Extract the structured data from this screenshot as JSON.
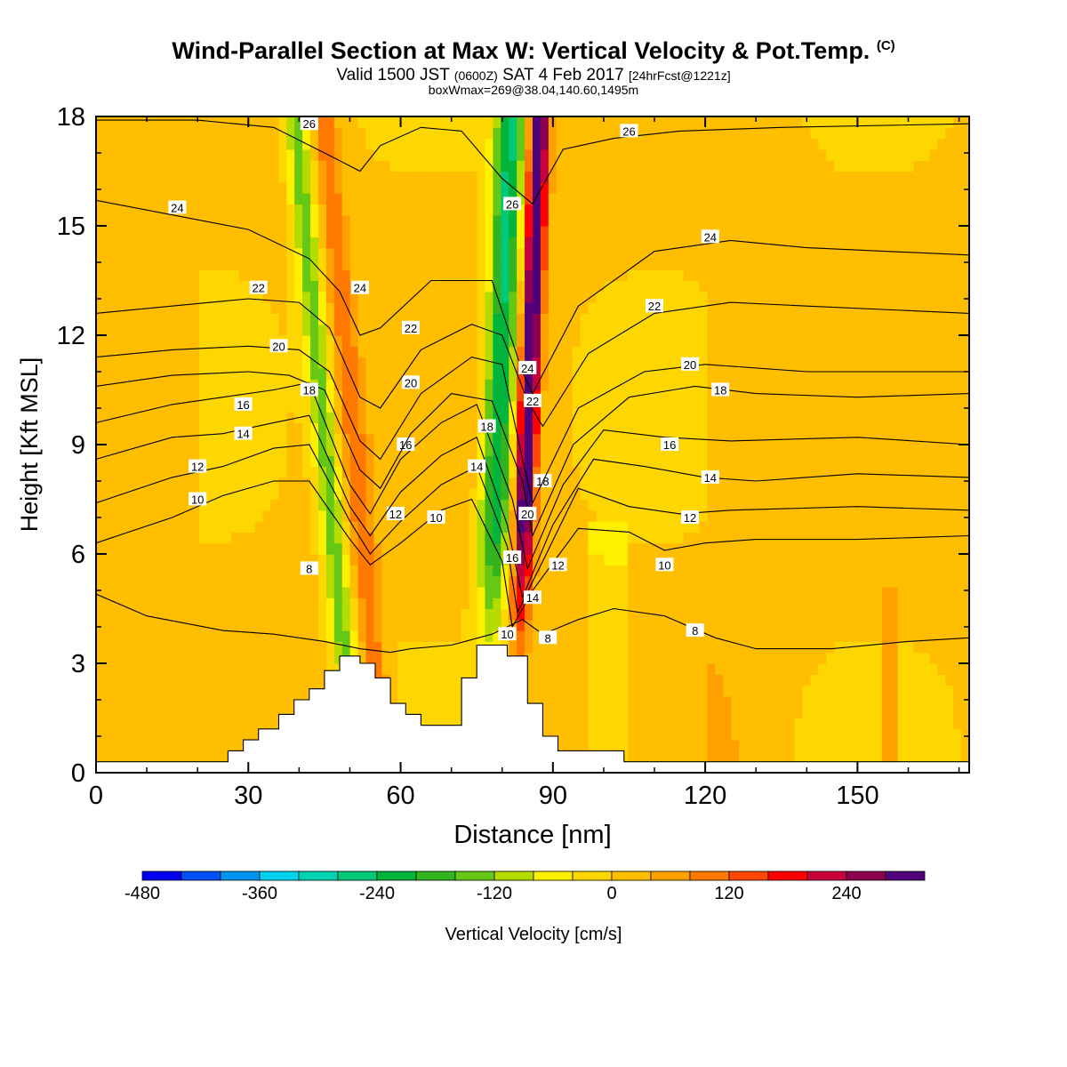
{
  "chart_data": {
    "type": "heatmap",
    "title": "Wind-Parallel Section at Max W: Vertical Velocity & Pot.Temp.",
    "title_mark": "(C)",
    "subtitle": {
      "valid": "Valid 1500 JST",
      "utc": "(0600Z)",
      "date": "SAT 4 Feb 2017",
      "forecast": "[24hrFcst@1221z]"
    },
    "subtitle2": "boxWmax=269@38.04,140.60,1495m",
    "xlabel": "Distance [nm]",
    "ylabel": "Height [Kft MSL]",
    "xlim": [
      0,
      172
    ],
    "ylim": [
      0,
      18
    ],
    "xticks": [
      0,
      30,
      60,
      90,
      120,
      150
    ],
    "yticks": [
      0,
      3,
      6,
      9,
      12,
      15,
      18
    ],
    "colorbar": {
      "label": "Vertical Velocity [cm/s]",
      "tick_labels": [
        "-480",
        "-360",
        "-240",
        "-120",
        "0",
        "120",
        "240"
      ],
      "tick_values": [
        -480,
        -360,
        -240,
        -120,
        0,
        120,
        240
      ],
      "levels": [
        -480,
        -440,
        -400,
        -360,
        -320,
        -280,
        -240,
        -200,
        -160,
        -120,
        -80,
        -40,
        0,
        40,
        80,
        120,
        160,
        200,
        240,
        280,
        320
      ],
      "colors": [
        "#0000ee",
        "#0050f5",
        "#0096f0",
        "#00d2f0",
        "#00d2b4",
        "#00c878",
        "#00b43c",
        "#32b41e",
        "#64c814",
        "#b4dc00",
        "#fff000",
        "#ffd700",
        "#ffbe00",
        "#ffa000",
        "#ff7800",
        "#ff4600",
        "#ff0000",
        "#c8003c",
        "#8c0050",
        "#500078"
      ]
    },
    "terrain": [
      [
        0,
        0.3
      ],
      [
        26,
        0.3
      ],
      [
        26,
        0.6
      ],
      [
        29,
        0.6
      ],
      [
        29,
        0.9
      ],
      [
        32,
        0.9
      ],
      [
        32,
        1.2
      ],
      [
        36,
        1.2
      ],
      [
        36,
        1.6
      ],
      [
        39,
        1.6
      ],
      [
        39,
        2.0
      ],
      [
        42,
        2.0
      ],
      [
        42,
        2.3
      ],
      [
        45,
        2.3
      ],
      [
        45,
        2.8
      ],
      [
        48,
        2.8
      ],
      [
        48,
        3.2
      ],
      [
        52,
        3.2
      ],
      [
        52,
        3.0
      ],
      [
        55,
        3.0
      ],
      [
        55,
        2.6
      ],
      [
        58,
        2.6
      ],
      [
        58,
        1.9
      ],
      [
        61,
        1.9
      ],
      [
        61,
        1.6
      ],
      [
        64,
        1.6
      ],
      [
        64,
        1.3
      ],
      [
        72,
        1.3
      ],
      [
        72,
        2.6
      ],
      [
        75,
        2.6
      ],
      [
        75,
        3.5
      ],
      [
        81,
        3.5
      ],
      [
        81,
        3.2
      ],
      [
        85,
        3.2
      ],
      [
        85,
        1.9
      ],
      [
        88,
        1.9
      ],
      [
        88,
        1.0
      ],
      [
        91,
        1.0
      ],
      [
        91,
        0.6
      ],
      [
        104,
        0.6
      ],
      [
        104,
        0.3
      ],
      [
        172,
        0.3
      ]
    ],
    "contours": [
      {
        "level": 8,
        "points": [
          [
            0,
            4.9
          ],
          [
            10,
            4.3
          ],
          [
            25,
            3.9
          ],
          [
            35,
            3.8
          ],
          [
            45,
            3.6
          ],
          [
            52,
            3.4
          ],
          [
            58,
            3.3
          ],
          [
            62,
            3.4
          ],
          [
            70,
            3.5
          ],
          [
            78,
            3.8
          ],
          [
            84,
            4.2
          ],
          [
            88,
            3.8
          ],
          [
            95,
            4.2
          ],
          [
            102,
            4.5
          ],
          [
            112,
            4.3
          ],
          [
            122,
            3.7
          ],
          [
            130,
            3.4
          ],
          [
            145,
            3.4
          ],
          [
            160,
            3.6
          ],
          [
            172,
            3.7
          ]
        ],
        "labels": [
          [
            42,
            5.6
          ],
          [
            89,
            3.7
          ],
          [
            118,
            3.9
          ]
        ]
      },
      {
        "level": 10,
        "points": [
          [
            0,
            6.3
          ],
          [
            15,
            7.0
          ],
          [
            25,
            7.6
          ],
          [
            35,
            8.0
          ],
          [
            42,
            8.0
          ],
          [
            50,
            6.4
          ],
          [
            54,
            5.7
          ],
          [
            60,
            6.3
          ],
          [
            68,
            7.2
          ],
          [
            74,
            7.5
          ],
          [
            80,
            5.8
          ],
          [
            82,
            4.0
          ],
          [
            86,
            5.0
          ],
          [
            95,
            6.7
          ],
          [
            105,
            6.6
          ],
          [
            112,
            6.1
          ],
          [
            120,
            6.3
          ],
          [
            130,
            6.4
          ],
          [
            150,
            6.4
          ],
          [
            172,
            6.5
          ]
        ],
        "labels": [
          [
            20,
            7.5
          ],
          [
            67,
            7.0
          ],
          [
            81,
            3.8
          ],
          [
            112,
            5.7
          ]
        ]
      },
      {
        "level": 12,
        "points": [
          [
            0,
            7.4
          ],
          [
            15,
            8.1
          ],
          [
            25,
            8.4
          ],
          [
            35,
            8.9
          ],
          [
            42,
            9.0
          ],
          [
            50,
            6.9
          ],
          [
            54,
            6.0
          ],
          [
            60,
            6.9
          ],
          [
            68,
            7.9
          ],
          [
            75,
            8.4
          ],
          [
            81,
            6.2
          ],
          [
            83,
            4.4
          ],
          [
            88,
            5.8
          ],
          [
            95,
            7.8
          ],
          [
            105,
            7.3
          ],
          [
            115,
            7.1
          ],
          [
            125,
            7.2
          ],
          [
            150,
            7.3
          ],
          [
            172,
            7.2
          ]
        ],
        "labels": [
          [
            20,
            8.4
          ],
          [
            59,
            7.1
          ],
          [
            91,
            5.7
          ],
          [
            117,
            7.0
          ]
        ]
      },
      {
        "level": 14,
        "points": [
          [
            0,
            8.6
          ],
          [
            15,
            9.2
          ],
          [
            25,
            9.3
          ],
          [
            35,
            9.6
          ],
          [
            42,
            9.8
          ],
          [
            50,
            7.3
          ],
          [
            54,
            6.5
          ],
          [
            60,
            7.7
          ],
          [
            68,
            8.7
          ],
          [
            75,
            9.2
          ],
          [
            81,
            6.8
          ],
          [
            84,
            4.8
          ],
          [
            90,
            6.8
          ],
          [
            98,
            8.6
          ],
          [
            108,
            8.4
          ],
          [
            120,
            8.1
          ],
          [
            130,
            8.0
          ],
          [
            150,
            8.2
          ],
          [
            172,
            8.1
          ]
        ],
        "labels": [
          [
            29,
            9.3
          ],
          [
            75,
            8.4
          ],
          [
            86,
            4.8
          ],
          [
            121,
            8.1
          ]
        ]
      },
      {
        "level": 16,
        "points": [
          [
            0,
            9.6
          ],
          [
            15,
            10.1
          ],
          [
            25,
            10.3
          ],
          [
            35,
            10.5
          ],
          [
            42,
            10.7
          ],
          [
            50,
            7.9
          ],
          [
            54,
            7.1
          ],
          [
            60,
            8.6
          ],
          [
            68,
            9.6
          ],
          [
            75,
            10.1
          ],
          [
            82,
            7.5
          ],
          [
            85,
            5.6
          ],
          [
            92,
            7.9
          ],
          [
            100,
            9.4
          ],
          [
            112,
            9.2
          ],
          [
            125,
            9.1
          ],
          [
            150,
            9.2
          ],
          [
            172,
            9.0
          ]
        ],
        "labels": [
          [
            29,
            10.1
          ],
          [
            61,
            9.0
          ],
          [
            82,
            5.9
          ],
          [
            113,
            9.0
          ]
        ]
      },
      {
        "level": 18,
        "points": [
          [
            0,
            10.6
          ],
          [
            15,
            10.9
          ],
          [
            30,
            11.0
          ],
          [
            38,
            10.9
          ],
          [
            45,
            10.5
          ],
          [
            52,
            8.3
          ],
          [
            56,
            7.8
          ],
          [
            62,
            9.3
          ],
          [
            70,
            10.4
          ],
          [
            78,
            10.2
          ],
          [
            84,
            8.0
          ],
          [
            86,
            6.5
          ],
          [
            94,
            9.0
          ],
          [
            105,
            10.3
          ],
          [
            118,
            10.6
          ],
          [
            130,
            10.4
          ],
          [
            150,
            10.3
          ],
          [
            172,
            10.4
          ]
        ],
        "labels": [
          [
            42,
            10.5
          ],
          [
            77,
            9.5
          ],
          [
            88,
            8.0
          ],
          [
            123,
            10.5
          ]
        ]
      },
      {
        "level": 20,
        "points": [
          [
            0,
            11.4
          ],
          [
            15,
            11.6
          ],
          [
            30,
            11.7
          ],
          [
            40,
            11.6
          ],
          [
            46,
            11.0
          ],
          [
            52,
            9.1
          ],
          [
            56,
            8.6
          ],
          [
            64,
            10.4
          ],
          [
            74,
            11.4
          ],
          [
            80,
            11.2
          ],
          [
            84,
            8.6
          ],
          [
            86,
            7.4
          ],
          [
            95,
            10.0
          ],
          [
            108,
            11.0
          ],
          [
            120,
            11.2
          ],
          [
            140,
            11.0
          ],
          [
            172,
            11.0
          ]
        ],
        "labels": [
          [
            36,
            11.7
          ],
          [
            62,
            10.7
          ],
          [
            85,
            7.1
          ],
          [
            117,
            11.2
          ]
        ]
      },
      {
        "level": 22,
        "points": [
          [
            0,
            12.6
          ],
          [
            15,
            12.8
          ],
          [
            30,
            13.0
          ],
          [
            40,
            12.9
          ],
          [
            46,
            12.2
          ],
          [
            52,
            10.3
          ],
          [
            56,
            10.0
          ],
          [
            64,
            11.6
          ],
          [
            74,
            12.3
          ],
          [
            80,
            12.0
          ],
          [
            85,
            10.2
          ],
          [
            88,
            9.5
          ],
          [
            97,
            11.5
          ],
          [
            110,
            12.6
          ],
          [
            125,
            12.9
          ],
          [
            140,
            12.8
          ],
          [
            172,
            12.6
          ]
        ],
        "labels": [
          [
            32,
            13.3
          ],
          [
            62,
            12.2
          ],
          [
            86,
            10.2
          ],
          [
            110,
            12.8
          ]
        ]
      },
      {
        "level": 24,
        "points": [
          [
            0,
            15.7
          ],
          [
            15,
            15.3
          ],
          [
            30,
            14.9
          ],
          [
            42,
            14.1
          ],
          [
            48,
            13.2
          ],
          [
            52,
            12.0
          ],
          [
            56,
            12.2
          ],
          [
            66,
            13.5
          ],
          [
            78,
            13.5
          ],
          [
            84,
            11.0
          ],
          [
            86,
            10.4
          ],
          [
            95,
            12.8
          ],
          [
            110,
            14.3
          ],
          [
            125,
            14.6
          ],
          [
            140,
            14.4
          ],
          [
            172,
            14.2
          ]
        ],
        "labels": [
          [
            16,
            15.5
          ],
          [
            52,
            13.3
          ],
          [
            85,
            11.1
          ],
          [
            121,
            14.7
          ]
        ]
      },
      {
        "level": 26,
        "points": [
          [
            0,
            17.9
          ],
          [
            20,
            17.9
          ],
          [
            35,
            17.7
          ],
          [
            45,
            17.0
          ],
          [
            52,
            16.5
          ],
          [
            56,
            17.2
          ],
          [
            64,
            17.7
          ],
          [
            72,
            17.6
          ],
          [
            80,
            16.3
          ],
          [
            86,
            15.6
          ],
          [
            92,
            17.1
          ],
          [
            102,
            17.4
          ],
          [
            115,
            17.6
          ],
          [
            135,
            17.7
          ],
          [
            172,
            17.8
          ]
        ],
        "labels": [
          [
            42,
            17.8
          ],
          [
            82,
            15.6
          ],
          [
            105,
            17.6
          ]
        ]
      }
    ]
  }
}
